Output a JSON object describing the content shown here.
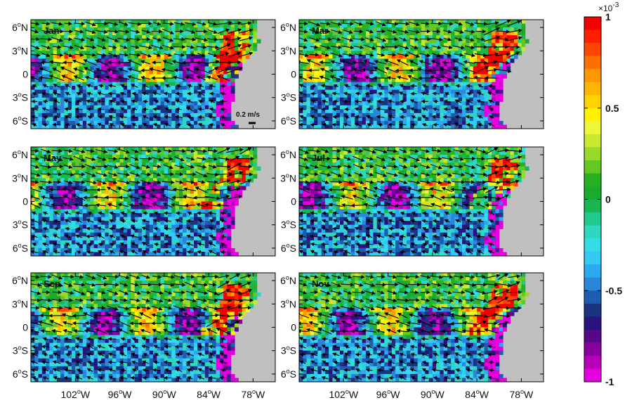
{
  "chart_data": {
    "type": "heatmap",
    "panels": [
      {
        "month": "Jan"
      },
      {
        "month": "Mar"
      },
      {
        "month": "May"
      },
      {
        "month": "Jul"
      },
      {
        "month": "Sep"
      },
      {
        "month": "Nov"
      }
    ],
    "lon_range": [
      -108,
      -75
    ],
    "lat_range": [
      -7,
      7
    ],
    "x_ticks": [
      {
        "value": -102,
        "label": "102",
        "suffix": "W"
      },
      {
        "value": -96,
        "label": "96",
        "suffix": "W"
      },
      {
        "value": -90,
        "label": "90",
        "suffix": "W"
      },
      {
        "value": -84,
        "label": "84",
        "suffix": "W"
      },
      {
        "value": -78,
        "label": "78",
        "suffix": "W"
      }
    ],
    "y_ticks": [
      {
        "value": 6,
        "label": "6",
        "suffix": "N"
      },
      {
        "value": 3,
        "label": "3",
        "suffix": "N"
      },
      {
        "value": 0,
        "label": "0",
        "suffix": ""
      },
      {
        "value": -3,
        "label": "3",
        "suffix": "S"
      },
      {
        "value": -6,
        "label": "6",
        "suffix": "S"
      }
    ],
    "degree_symbol": "o",
    "vector_scale": {
      "label": "0.2 m/s",
      "value": 0.2
    },
    "colorbar": {
      "range": [
        -1,
        1
      ],
      "exponent_label": "×10",
      "exponent": "-3",
      "ticks": [
        {
          "value": 1,
          "label": "1"
        },
        {
          "value": 0.5,
          "label": "0.5"
        },
        {
          "value": 0,
          "label": "0"
        },
        {
          "value": -0.5,
          "label": "-0.5"
        },
        {
          "value": -1,
          "label": "-1"
        }
      ],
      "colors": [
        "#e600e0",
        "#b800b8",
        "#8800a0",
        "#55088a",
        "#27147d",
        "#1a3480",
        "#1e5cb0",
        "#2a86d8",
        "#2aaaf0",
        "#34c8f5",
        "#34dde6",
        "#2fd7c0",
        "#21c98c",
        "#19b650",
        "#1aaa2c",
        "#29b022",
        "#63c824",
        "#9ad82a",
        "#c9e830",
        "#eef638",
        "#fff200",
        "#ffd400",
        "#ffb600",
        "#ff9700",
        "#ff6e00",
        "#ff4600",
        "#ff1e00",
        "#f50000"
      ]
    },
    "land_color": "#c0c0c0"
  }
}
